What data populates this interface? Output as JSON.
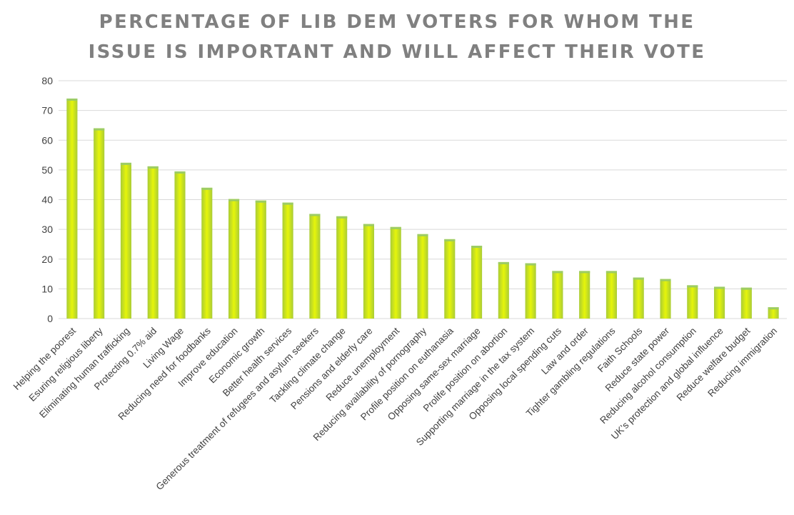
{
  "chart_data": {
    "type": "bar",
    "title_lines": [
      "PERCENTAGE OF LIB DEM VOTERS FOR WHOM THE",
      "ISSUE IS IMPORTANT AND WILL AFFECT THEIR VOTE"
    ],
    "xlabel": "",
    "ylabel": "",
    "ylim": [
      0,
      80
    ],
    "yticks": [
      0,
      10,
      20,
      30,
      40,
      50,
      60,
      70,
      80
    ],
    "grid": true,
    "legend": "none",
    "categories": [
      "Helping the poorest",
      "Esuring religious liberty",
      "Eliminating human trafficking",
      "Protecting 0.7% aid",
      "Living Wage",
      "Reducing need for foodbanks",
      "Improve education",
      "Economic growth",
      "Better health services",
      "Generous treatment of refugees and asylum seekers",
      "Tackling climate change",
      "Pensions and elderly care",
      "Reduce unemployment",
      "Reducing availability of pornography",
      "Profile position on euthanasia",
      "Opposing same-sex marriage",
      "Prolife position on abortion",
      "Supporting marriage in the tax system",
      "Opposing local spending cuts",
      "Law and order",
      "Tighter gambling regulations",
      "Faith Schools",
      "Reduce state power",
      "Reducing alcohol consumption",
      "UK's protection and global influence",
      "Reduce welfare budget",
      "Reducing immigration"
    ],
    "values": [
      74,
      64,
      52.4,
      51.2,
      49.5,
      44,
      40.2,
      39.7,
      39,
      35.2,
      34.4,
      31.8,
      30.8,
      28.4,
      26.7,
      24.5,
      19,
      18.6,
      16,
      16,
      16,
      13.8,
      13.3,
      11.2,
      10.7,
      10.4,
      3.8
    ],
    "colors": {
      "bar_center": "#e6f50a",
      "bar_edge": "#aacc36",
      "bar_top": "#9ccc65",
      "grid": "#d9d9d9",
      "tick_text": "#404040",
      "title": "#808080"
    }
  }
}
